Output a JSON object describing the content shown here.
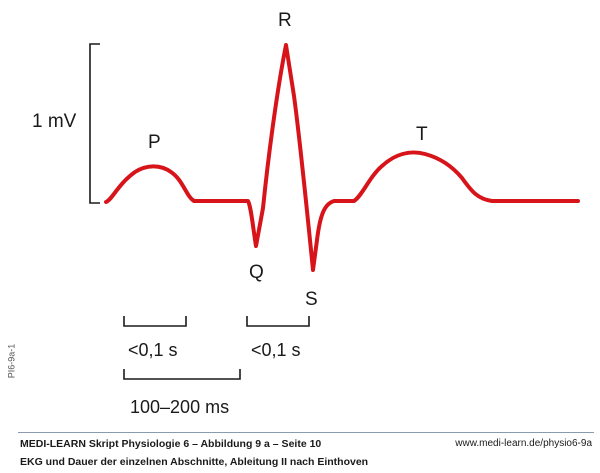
{
  "diagram": {
    "scale_label": "1 mV",
    "waves": {
      "p": "P",
      "q": "Q",
      "r": "R",
      "s": "S",
      "t": "T"
    },
    "measures": {
      "pq_duration": "<0,1 s",
      "qrs_duration": "<0,1 s",
      "pq_interval": "100–200 ms"
    },
    "trace_color": "#d7141a",
    "ink_color": "#1a1a1a"
  },
  "side_code": "PI6-9a-1",
  "footer": {
    "title": "MEDI-LEARN Skript Physiologie 6 – Abbildung 9 a – Seite 10",
    "url": "www.medi-learn.de/physio6-9a",
    "caption": "EKG und Dauer der einzelnen Abschnitte, Ableitung II nach Einthoven",
    "rule_color": "#8a9bb0"
  }
}
